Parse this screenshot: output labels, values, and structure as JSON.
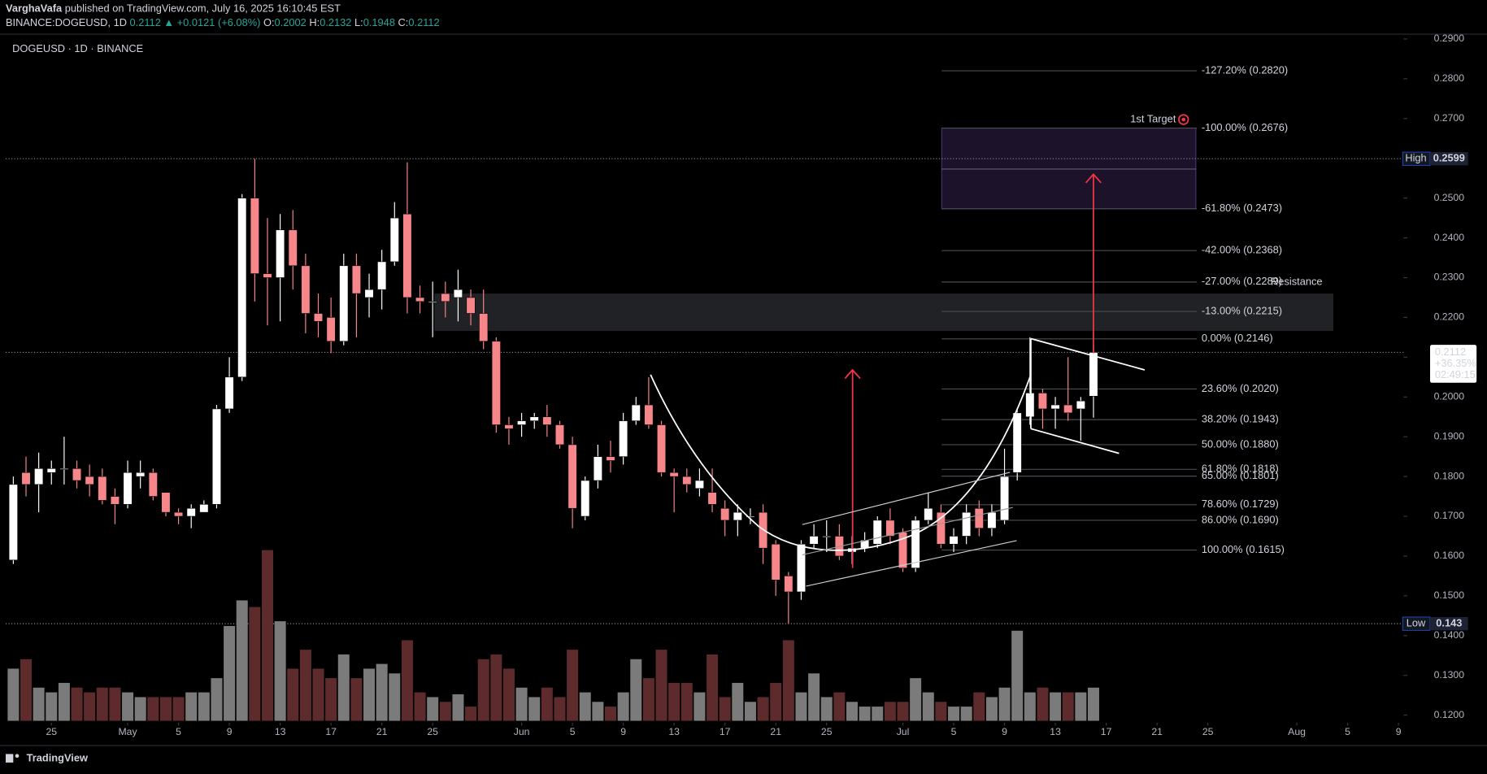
{
  "chart_data": {
    "type": "candlestick",
    "author": "VarghaVafa",
    "published": "published on TradingView.com, July 16, 2025 16:10:45 EST",
    "symbol": "BINANCE:DOGEUSD, 1D",
    "change": "▲ +0.0121 (+6.08%)",
    "ohlc_labels": [
      "O:",
      "H:",
      "L:",
      "C:"
    ],
    "title": "DOGEUSD · 1D · BINANCE",
    "price_change_label": "+36.35%",
    "countdown": "02:49:15",
    "high_label": "High",
    "low_label": "Low",
    "high_index": 19,
    "low_index": 61,
    "up_color": "#ffffff",
    "down_color": "#f7868a",
    "volume_up_color": "#7b7b7b",
    "volume_down_color": "#5e2b2d",
    "xlim": [
      -0.6,
      109.4
    ],
    "xticks": [
      {
        "value": 3,
        "label": "25"
      },
      {
        "value": 9,
        "label": "May"
      },
      {
        "value": 13,
        "label": "5"
      },
      {
        "value": 17,
        "label": "9"
      },
      {
        "value": 21,
        "label": "13"
      },
      {
        "value": 25,
        "label": "17"
      },
      {
        "value": 29,
        "label": "21"
      },
      {
        "value": 33,
        "label": "25"
      },
      {
        "value": 40,
        "label": "Jun"
      },
      {
        "value": 44,
        "label": "5"
      },
      {
        "value": 48,
        "label": "9"
      },
      {
        "value": 52,
        "label": "13"
      },
      {
        "value": 56,
        "label": "17"
      },
      {
        "value": 60,
        "label": "21"
      },
      {
        "value": 64,
        "label": "25"
      },
      {
        "value": 70,
        "label": "Jul"
      },
      {
        "value": 74,
        "label": "5"
      },
      {
        "value": 78,
        "label": "9"
      },
      {
        "value": 82,
        "label": "13"
      },
      {
        "value": 86,
        "label": "17"
      },
      {
        "value": 90,
        "label": "21"
      },
      {
        "value": 94,
        "label": "25"
      },
      {
        "value": 101,
        "label": "Aug"
      },
      {
        "value": 105,
        "label": "5"
      },
      {
        "value": 109,
        "label": "9"
      }
    ],
    "ylim": [
      0.1181,
      0.2912
    ],
    "yticks": [
      {
        "value": 0.12,
        "label": "0.1200"
      },
      {
        "value": 0.13,
        "label": "0.1300"
      },
      {
        "value": 0.14,
        "label": "0.1400"
      },
      {
        "value": 0.15,
        "label": "0.1500"
      },
      {
        "value": 0.16,
        "label": "0.1600"
      },
      {
        "value": 0.17,
        "label": "0.1700"
      },
      {
        "value": 0.18,
        "label": "0.1800"
      },
      {
        "value": 0.19,
        "label": "0.1900"
      },
      {
        "value": 0.2,
        "label": "0.2000"
      },
      {
        "value": 0.21,
        "label": "0.2100"
      },
      {
        "value": 0.22,
        "label": "0.2200"
      },
      {
        "value": 0.23,
        "label": "0.2300"
      },
      {
        "value": 0.24,
        "label": "0.2400"
      },
      {
        "value": 0.25,
        "label": "0.2500"
      },
      {
        "value": 0.26,
        "label": "0.2600"
      },
      {
        "value": 0.27,
        "label": "0.2700"
      },
      {
        "value": 0.28,
        "label": "0.2800"
      },
      {
        "value": 0.29,
        "label": "0.2900"
      }
    ],
    "open": [
      0.159,
      0.181,
      0.178,
      0.181,
      0.182,
      0.182,
      0.18,
      0.18,
      0.175,
      0.173,
      0.18,
      0.181,
      0.176,
      0.171,
      0.17,
      0.171,
      0.173,
      0.197,
      0.205,
      0.25,
      0.231,
      0.23,
      0.242,
      0.233,
      0.221,
      0.22,
      0.214,
      0.233,
      0.225,
      0.227,
      0.234,
      0.246,
      0.225,
      0.224,
      0.226,
      0.225,
      0.225,
      0.221,
      0.214,
      0.193,
      0.193,
      0.194,
      0.195,
      0.193,
      0.188,
      0.17,
      0.179,
      0.185,
      0.185,
      0.194,
      0.198,
      0.193,
      0.181,
      0.18,
      0.177,
      0.176,
      0.172,
      0.169,
      0.17,
      0.171,
      0.163,
      0.155,
      0.151,
      0.163,
      0.165,
      0.165,
      0.161,
      0.162,
      0.163,
      0.169,
      0.166,
      0.157,
      0.169,
      0.171,
      0.163,
      0.165,
      0.172,
      0.167,
      0.169,
      0.181,
      0.195,
      0.201,
      0.197,
      0.198,
      0.197,
      0.2002
    ],
    "high": [
      0.18,
      0.185,
      0.186,
      0.184,
      0.19,
      0.184,
      0.183,
      0.182,
      0.177,
      0.184,
      0.184,
      0.182,
      0.176,
      0.172,
      0.173,
      0.174,
      0.198,
      0.21,
      0.251,
      0.2599,
      0.245,
      0.246,
      0.247,
      0.236,
      0.226,
      0.225,
      0.236,
      0.236,
      0.231,
      0.237,
      0.249,
      0.259,
      0.228,
      0.229,
      0.229,
      0.232,
      0.227,
      0.227,
      0.215,
      0.195,
      0.196,
      0.196,
      0.198,
      0.194,
      0.19,
      0.18,
      0.188,
      0.189,
      0.196,
      0.2,
      0.205,
      0.194,
      0.182,
      0.182,
      0.182,
      0.182,
      0.174,
      0.173,
      0.172,
      0.173,
      0.164,
      0.156,
      0.164,
      0.168,
      0.169,
      0.168,
      0.165,
      0.166,
      0.17,
      0.172,
      0.167,
      0.17,
      0.176,
      0.173,
      0.167,
      0.173,
      0.174,
      0.173,
      0.187,
      0.197,
      0.215,
      0.202,
      0.2,
      0.21,
      0.2,
      0.2132
    ],
    "low": [
      0.158,
      0.175,
      0.171,
      0.178,
      0.178,
      0.177,
      0.175,
      0.173,
      0.168,
      0.172,
      0.177,
      0.174,
      0.17,
      0.168,
      0.167,
      0.171,
      0.172,
      0.196,
      0.204,
      0.224,
      0.218,
      0.219,
      0.227,
      0.216,
      0.215,
      0.211,
      0.213,
      0.215,
      0.22,
      0.222,
      0.233,
      0.221,
      0.221,
      0.215,
      0.22,
      0.219,
      0.218,
      0.212,
      0.191,
      0.188,
      0.19,
      0.192,
      0.19,
      0.187,
      0.167,
      0.169,
      0.177,
      0.181,
      0.183,
      0.193,
      0.192,
      0.18,
      0.171,
      0.176,
      0.175,
      0.171,
      0.165,
      0.165,
      0.168,
      0.158,
      0.15,
      0.143,
      0.149,
      0.162,
      0.161,
      0.159,
      0.158,
      0.161,
      0.162,
      0.163,
      0.156,
      0.156,
      0.168,
      0.162,
      0.161,
      0.163,
      0.165,
      0.165,
      0.168,
      0.179,
      0.193,
      0.192,
      0.192,
      0.194,
      0.189,
      0.1948
    ],
    "close": [
      0.178,
      0.178,
      0.182,
      0.182,
      0.182,
      0.179,
      0.178,
      0.174,
      0.173,
      0.181,
      0.181,
      0.175,
      0.171,
      0.17,
      0.172,
      0.173,
      0.197,
      0.205,
      0.25,
      0.231,
      0.23,
      0.242,
      0.233,
      0.221,
      0.219,
      0.214,
      0.233,
      0.226,
      0.227,
      0.234,
      0.245,
      0.225,
      0.224,
      0.224,
      0.224,
      0.227,
      0.221,
      0.214,
      0.193,
      0.192,
      0.194,
      0.195,
      0.193,
      0.188,
      0.172,
      0.179,
      0.185,
      0.184,
      0.194,
      0.198,
      0.193,
      0.181,
      0.18,
      0.178,
      0.179,
      0.173,
      0.169,
      0.171,
      0.17,
      0.162,
      0.154,
      0.151,
      0.163,
      0.165,
      0.165,
      0.16,
      0.162,
      0.164,
      0.169,
      0.165,
      0.157,
      0.169,
      0.172,
      0.163,
      0.165,
      0.171,
      0.167,
      0.171,
      0.18,
      0.196,
      0.201,
      0.197,
      0.198,
      0.196,
      0.199,
      0.2112
    ],
    "volume": [
      55,
      65,
      35,
      30,
      40,
      35,
      30,
      35,
      35,
      30,
      25,
      25,
      25,
      25,
      30,
      30,
      45,
      100,
      127,
      120,
      180,
      105,
      55,
      75,
      55,
      45,
      70,
      45,
      55,
      60,
      50,
      85,
      30,
      25,
      20,
      28,
      15,
      65,
      70,
      55,
      35,
      25,
      35,
      25,
      75,
      30,
      20,
      15,
      30,
      65,
      45,
      75,
      40,
      40,
      30,
      70,
      25,
      40,
      20,
      25,
      40,
      85,
      30,
      50,
      25,
      30,
      20,
      15,
      15,
      20,
      20,
      45,
      30,
      20,
      15,
      15,
      30,
      25,
      35,
      95,
      30,
      35,
      30,
      30,
      30,
      35
    ],
    "fib_levels": [
      {
        "value": 0.282,
        "label": "-127.20% (0.2820)"
      },
      {
        "value": 0.2676,
        "label": "-100.00% (0.2676)"
      },
      {
        "value": 0.2473,
        "label": "-61.80% (0.2473)"
      },
      {
        "value": 0.2368,
        "label": "-42.00% (0.2368)"
      },
      {
        "value": 0.2289,
        "label": "-27.00% (0.2289)"
      },
      {
        "value": 0.2215,
        "label": "-13.00% (0.2215)"
      },
      {
        "value": 0.2146,
        "label": "0.00% (0.2146)"
      },
      {
        "value": 0.202,
        "label": "23.60% (0.2020)"
      },
      {
        "value": 0.1943,
        "label": "38.20% (0.1943)"
      },
      {
        "value": 0.188,
        "label": "50.00% (0.1880)"
      },
      {
        "value": 0.1818,
        "label": "61.80% (0.1818)"
      },
      {
        "value": 0.1801,
        "label": "65.00% (0.1801)"
      },
      {
        "value": 0.1729,
        "label": "78.60% (0.1729)"
      },
      {
        "value": 0.169,
        "label": "86.00% (0.1690)"
      },
      {
        "value": 0.1615,
        "label": "100.00% (0.1615)"
      }
    ],
    "target_zone": {
      "label": "1st Target",
      "range": [
        0.2473,
        0.2676
      ],
      "mid": 0.2573
    },
    "resistance_zone": {
      "label": "Resistance",
      "range": [
        0.2166,
        0.226
      ]
    },
    "arrows": [
      {
        "from": 0.157,
        "to": 0.2068
      },
      {
        "from": 0.211,
        "to": 0.256
      }
    ],
    "brand": "TradingView"
  }
}
